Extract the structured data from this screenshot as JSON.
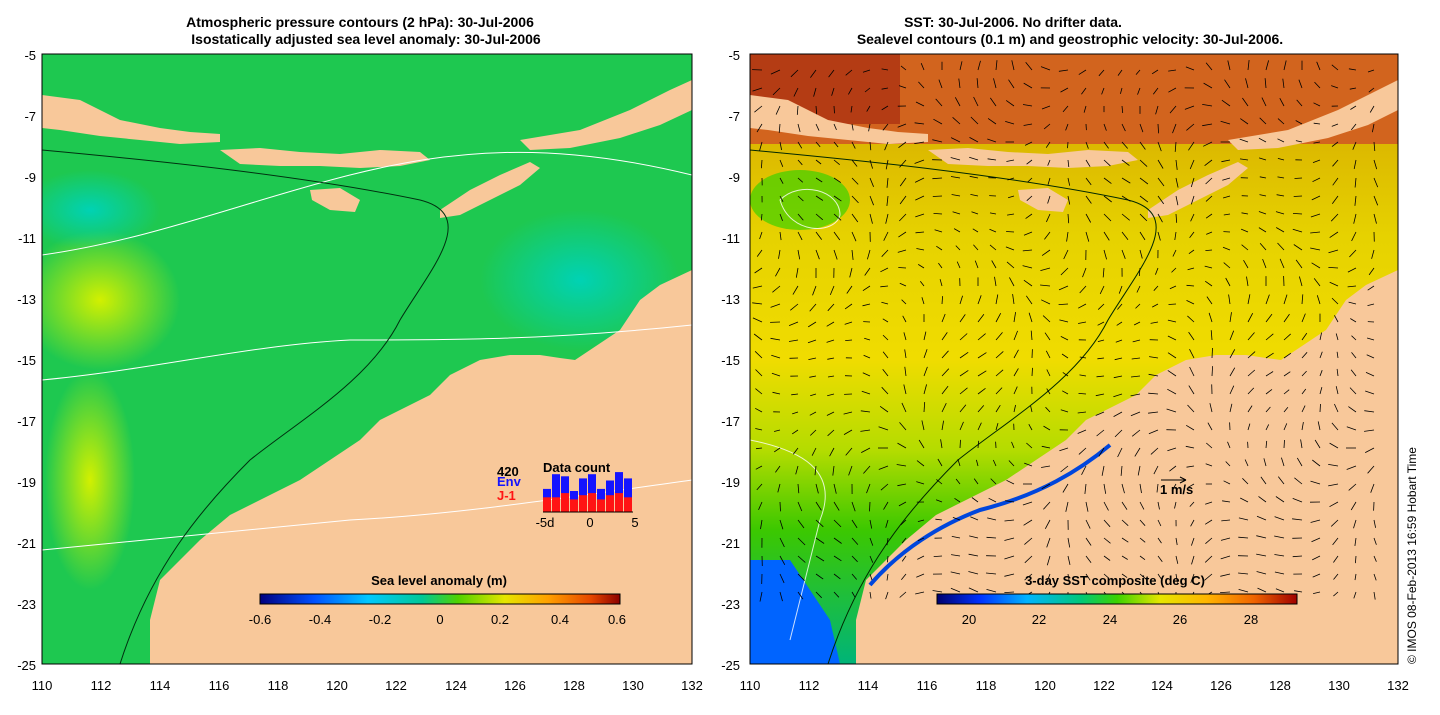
{
  "left_panel": {
    "title_line1": "Atmospheric pressure contours (2 hPa): 30-Jul-2006",
    "title_line2": "Isostatically adjusted sea level anomaly: 30-Jul-2006",
    "colorbar": {
      "title": "Sea level anomaly (m)",
      "ticks": [
        "-0.6",
        "-0.4",
        "-0.2",
        "0",
        "0.2",
        "0.4",
        "0.6"
      ]
    },
    "inset": {
      "max_label": "420",
      "title": "Data count",
      "env_label": "Env",
      "j1_label": "J-1",
      "xticks": [
        "-5d",
        "0",
        "5"
      ],
      "env_values": [
        0.55,
        0.9,
        0.85,
        0.5,
        0.8,
        0.9,
        0.55,
        0.75,
        0.95,
        0.8
      ],
      "j1_values": [
        0.35,
        0.35,
        0.45,
        0.3,
        0.4,
        0.45,
        0.3,
        0.4,
        0.45,
        0.35
      ],
      "colors": {
        "env": "#1414ff",
        "j1": "#ff1414"
      }
    }
  },
  "right_panel": {
    "title_line1": "SST: 30-Jul-2006. No drifter data.",
    "title_line2": "Sealevel contours (0.1 m) and geostrophic velocity: 30-Jul-2006.",
    "colorbar": {
      "title": "3-day SST composite (deg C)",
      "ticks": [
        "20",
        "22",
        "24",
        "26",
        "28"
      ]
    },
    "scale_arrow_label": "1 m/s"
  },
  "axes": {
    "lat_ticks": [
      "-5",
      "-7",
      "-9",
      "-11",
      "-13",
      "-15",
      "-17",
      "-19",
      "-21",
      "-23",
      "-25"
    ],
    "lon_ticks": [
      "110",
      "112",
      "114",
      "116",
      "118",
      "120",
      "122",
      "124",
      "126",
      "128",
      "130",
      "132"
    ]
  },
  "credit": "© IMOS 08-Feb-2013 16:59 Hobart Time",
  "colors": {
    "land": "#f8c89a"
  }
}
